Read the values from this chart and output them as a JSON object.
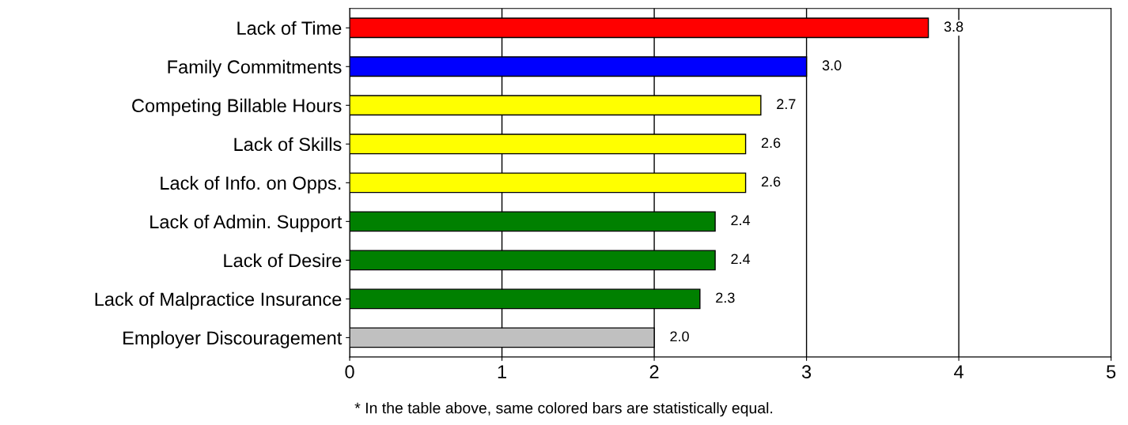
{
  "chart_data": {
    "type": "bar",
    "orientation": "horizontal",
    "categories": [
      "Lack of Time",
      "Family Commitments",
      "Competing Billable Hours",
      "Lack of Skills",
      "Lack of Info. on Opps.",
      "Lack of Admin. Support",
      "Lack of Desire",
      "Lack of Malpractice Insurance",
      "Employer Discouragement"
    ],
    "values": [
      3.8,
      3.0,
      2.7,
      2.6,
      2.6,
      2.4,
      2.4,
      2.3,
      2.0
    ],
    "value_labels": [
      "3.8",
      "3.0",
      "2.7",
      "2.6",
      "2.6",
      "2.4",
      "2.4",
      "2.3",
      "2.0"
    ],
    "colors": [
      "#ff0000",
      "#0000ff",
      "#ffff00",
      "#ffff00",
      "#ffff00",
      "#008000",
      "#008000",
      "#008000",
      "#c0c0c0"
    ],
    "xlim": [
      0,
      5
    ],
    "xticks": [
      0,
      1,
      2,
      3,
      4,
      5
    ],
    "grid": "x",
    "annotations": [
      "* In the table above, same colored bars are statistically equal."
    ]
  }
}
